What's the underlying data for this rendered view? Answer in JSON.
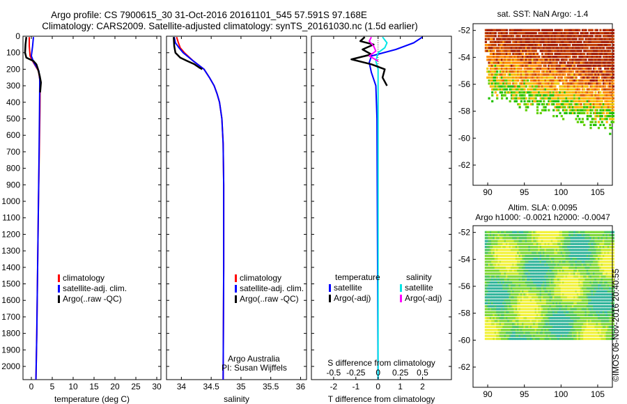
{
  "header": {
    "title_line1": "Argo profile: CS 7900615_30 31-Oct-2016 20161101_545 57.591S 97.168E",
    "title_line2": "Climatology: CARS2009. Satellite-adjusted climatology: synTS_20161030.nc (1.5d earlier)"
  },
  "credit": {
    "institution": "Argo Australia",
    "pi": "PI: Susan Wijffels",
    "stamp": "©IMOS 06-Nov-2016 20:40:55"
  },
  "colors": {
    "climatology": "#ff0000",
    "satellite": "#0000ff",
    "argo": "#000000",
    "sat_salinity": "#00e5e5",
    "argo_salinity": "#ff00ff"
  },
  "chart_data": [
    {
      "type": "line",
      "id": "temperature",
      "xlabel": "temperature (deg C)",
      "ylabel": "",
      "xlim": [
        -2,
        31
      ],
      "ylim": [
        2080,
        0
      ],
      "xticks": [
        0,
        5,
        10,
        15,
        20,
        25,
        30
      ],
      "yticks": [
        0,
        100,
        200,
        300,
        400,
        500,
        600,
        700,
        800,
        900,
        1000,
        1100,
        1200,
        1300,
        1400,
        1500,
        1600,
        1700,
        1800,
        1900,
        2000
      ],
      "legend": [
        "climatology",
        "satellite-adj. clim.",
        "Argo(..raw -QC)"
      ],
      "series": [
        {
          "name": "climatology",
          "color": "#ff0000",
          "width": 2,
          "points": [
            [
              -0.5,
              5
            ],
            [
              -0.5,
              60
            ],
            [
              -0.3,
              120
            ],
            [
              0.5,
              160
            ],
            [
              1.7,
              210
            ],
            [
              2.0,
              260
            ],
            [
              2.1,
              300
            ],
            [
              2.05,
              450
            ],
            [
              1.9,
              700
            ],
            [
              1.7,
              1000
            ],
            [
              1.5,
              1400
            ],
            [
              1.3,
              1800
            ],
            [
              1.1,
              2080
            ]
          ]
        },
        {
          "name": "satellite-adj. clim.",
          "color": "#0000ff",
          "width": 2,
          "points": [
            [
              0.5,
              5
            ],
            [
              0.3,
              60
            ],
            [
              0.0,
              120
            ],
            [
              0.6,
              160
            ],
            [
              1.8,
              210
            ],
            [
              2.0,
              260
            ],
            [
              2.0,
              300
            ],
            [
              1.95,
              450
            ],
            [
              1.85,
              700
            ],
            [
              1.7,
              1000
            ],
            [
              1.5,
              1400
            ],
            [
              1.3,
              1800
            ],
            [
              1.1,
              2080
            ]
          ]
        },
        {
          "name": "Argo(..raw -QC)",
          "color": "#000000",
          "width": 2.5,
          "points": [
            [
              -1.2,
              5
            ],
            [
              -1.4,
              50
            ],
            [
              -1.5,
              100
            ],
            [
              -1.2,
              130
            ],
            [
              0.5,
              150
            ],
            [
              1.2,
              170
            ],
            [
              1.6,
              200
            ],
            [
              2.0,
              240
            ],
            [
              2.3,
              280
            ],
            [
              2.1,
              340
            ]
          ]
        }
      ]
    },
    {
      "type": "line",
      "id": "salinity",
      "xlabel": "salinity",
      "ylabel": "",
      "xlim": [
        33.75,
        36.1
      ],
      "ylim": [
        2080,
        0
      ],
      "xticks": [
        34,
        34.5,
        35,
        35.5,
        36
      ],
      "legend": [
        "climatology",
        "satellite-adj. clim.",
        "Argo(..raw -QC)"
      ],
      "series": [
        {
          "name": "climatology",
          "color": "#ff0000",
          "width": 2,
          "points": [
            [
              33.92,
              5
            ],
            [
              33.95,
              40
            ],
            [
              33.98,
              70
            ],
            [
              34.05,
              100
            ],
            [
              34.2,
              150
            ],
            [
              34.38,
              200
            ],
            [
              34.47,
              250
            ],
            [
              34.55,
              300
            ],
            [
              34.6,
              350
            ],
            [
              34.64,
              400
            ],
            [
              34.68,
              500
            ],
            [
              34.7,
              650
            ],
            [
              34.71,
              900
            ],
            [
              34.71,
              1400
            ],
            [
              34.7,
              2080
            ]
          ]
        },
        {
          "name": "satellite-adj. clim.",
          "color": "#0000ff",
          "width": 2,
          "points": [
            [
              33.88,
              5
            ],
            [
              33.9,
              40
            ],
            [
              33.96,
              70
            ],
            [
              34.03,
              100
            ],
            [
              34.2,
              150
            ],
            [
              34.38,
              200
            ],
            [
              34.47,
              250
            ],
            [
              34.55,
              300
            ],
            [
              34.6,
              350
            ],
            [
              34.64,
              400
            ],
            [
              34.68,
              500
            ],
            [
              34.7,
              650
            ],
            [
              34.71,
              900
            ],
            [
              34.71,
              1400
            ],
            [
              34.7,
              2080
            ]
          ]
        },
        {
          "name": "Argo(..raw -QC)",
          "color": "#000000",
          "width": 2.5,
          "points": [
            [
              33.87,
              5
            ],
            [
              33.88,
              60
            ],
            [
              33.9,
              100
            ],
            [
              33.98,
              130
            ],
            [
              34.1,
              150
            ],
            [
              34.22,
              170
            ],
            [
              34.3,
              190
            ],
            [
              34.35,
              200
            ]
          ]
        }
      ]
    },
    {
      "type": "line",
      "id": "difference",
      "xlabel": "T difference from climatology",
      "xlabel_top": "S difference from climatology",
      "ylabel": "",
      "xlim": [
        -3,
        3.3
      ],
      "ylim": [
        2080,
        0
      ],
      "xticks": [
        -2,
        -1,
        0,
        1,
        2
      ],
      "xticks_top": [
        "-0.5",
        "-0.25",
        "0",
        "0.25",
        "0.5"
      ],
      "legend_temperature": {
        "header": "temperature",
        "entries": [
          "satellite",
          "Argo(-adj)"
        ]
      },
      "legend_salinity": {
        "header": "salinity",
        "entries": [
          "satellite",
          "Argo(-adj)"
        ]
      },
      "series": [
        {
          "name": "T satellite",
          "color": "#0000ff",
          "width": 2,
          "points": [
            [
              2.0,
              5
            ],
            [
              1.6,
              40
            ],
            [
              0.8,
              80
            ],
            [
              -0.3,
              120
            ],
            [
              -0.4,
              160
            ],
            [
              -0.3,
              220
            ],
            [
              -0.1,
              300
            ],
            [
              -0.05,
              500
            ],
            [
              0,
              2080
            ]
          ]
        },
        {
          "name": "S satellite",
          "color": "#00e5e5",
          "width": 2,
          "points": [
            [
              0.2,
              5
            ],
            [
              0.4,
              40
            ],
            [
              0.3,
              70
            ],
            [
              0.0,
              100
            ],
            [
              -0.1,
              150
            ],
            [
              0,
              200
            ],
            [
              0,
              2080
            ]
          ]
        },
        {
          "name": "T Argo(-adj)",
          "color": "#000000",
          "width": 2.5,
          "points": [
            [
              -0.6,
              5
            ],
            [
              -0.8,
              30
            ],
            [
              -0.2,
              50
            ],
            [
              -0.7,
              80
            ],
            [
              -0.3,
              110
            ],
            [
              -1.2,
              140
            ],
            [
              -0.3,
              170
            ],
            [
              0.3,
              200
            ],
            [
              0.2,
              250
            ],
            [
              0.4,
              300
            ]
          ]
        },
        {
          "name": "S Argo(-adj)",
          "color": "#ff00ff",
          "width": 2,
          "points": [
            [
              -0.3,
              5
            ],
            [
              -0.4,
              30
            ],
            [
              -0.2,
              60
            ],
            [
              -0.1,
              90
            ],
            [
              -0.4,
              120
            ],
            [
              0,
              150
            ]
          ]
        }
      ]
    },
    {
      "type": "heatmap",
      "id": "sst_map",
      "title": "sat. SST: NaN Argo: -1.4",
      "xlim": [
        88,
        107
      ],
      "ylim": [
        -63.5,
        -51.5
      ],
      "xticks": [
        90,
        95,
        100,
        105
      ],
      "yticks": [
        -52,
        -54,
        -56,
        -58,
        -60,
        -62
      ],
      "colormap": "sst"
    },
    {
      "type": "heatmap",
      "id": "sla_map",
      "title": "Altim. SLA: 0.0095",
      "title2": "Argo h1000: -0.0021 h2000: -0.0047",
      "xlim": [
        88,
        107
      ],
      "ylim": [
        -63.5,
        -51.5
      ],
      "xticks": [
        90,
        95,
        100,
        105
      ],
      "yticks": [
        -52,
        -54,
        -56,
        -58,
        -60,
        -62
      ],
      "colormap": "sla"
    }
  ]
}
